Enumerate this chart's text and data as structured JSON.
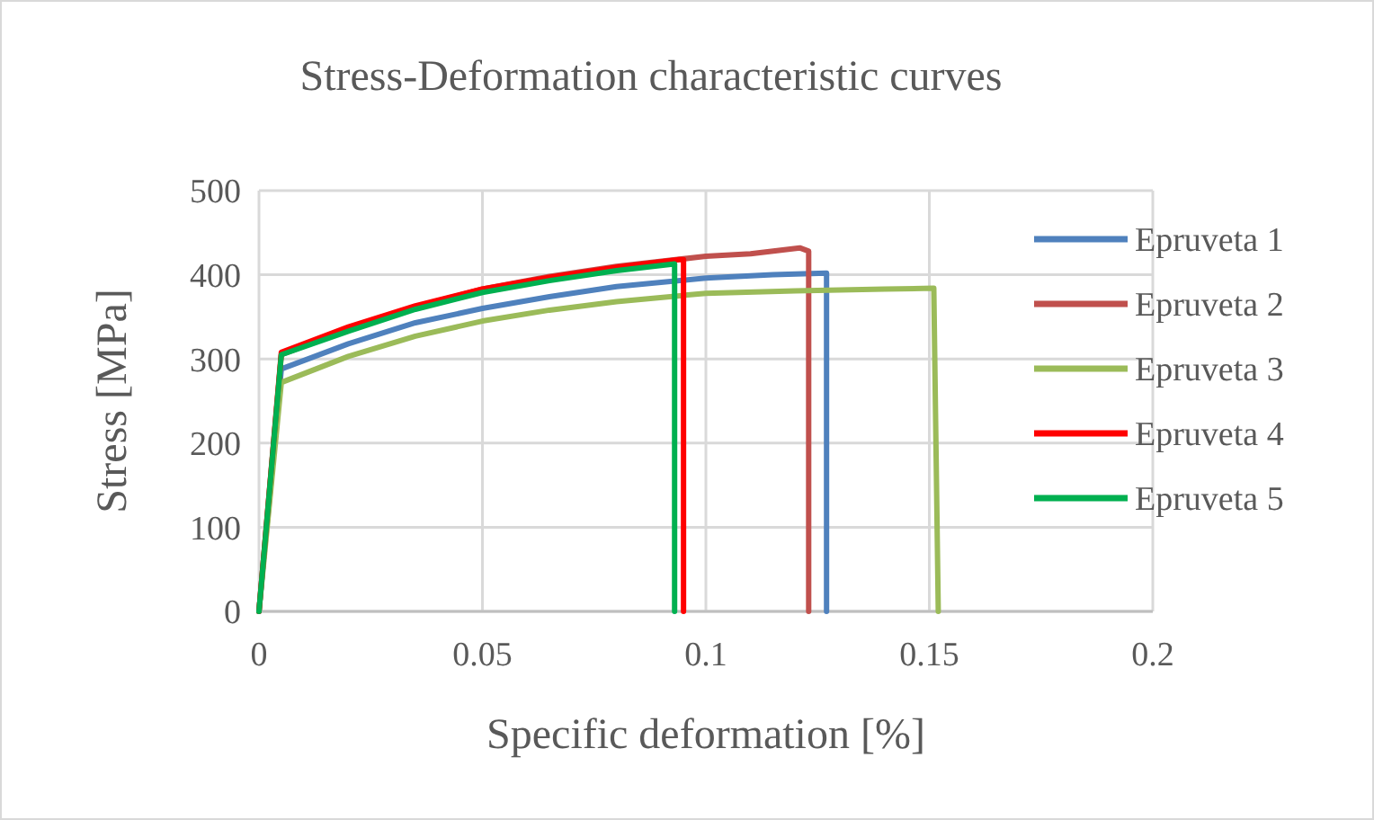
{
  "chart_data": {
    "type": "line",
    "title": "Stress-Deformation characteristic curves",
    "xlabel": "Specific deformation [%]",
    "ylabel": "Stress [MPa]",
    "xlim": [
      0,
      0.2
    ],
    "xticks": [
      0,
      0.05,
      0.1,
      0.15,
      0.2
    ],
    "ylim": [
      0,
      500
    ],
    "yticks": [
      0,
      100,
      200,
      300,
      400,
      500
    ],
    "grid": true,
    "legend": "right",
    "marker": "none",
    "line_style": "solid",
    "series": [
      {
        "name": "Epruveta 1",
        "color": "#4f81bd",
        "x": [
          0,
          0.005,
          0.02,
          0.035,
          0.05,
          0.065,
          0.08,
          0.1,
          0.115,
          0.127,
          0.127
        ],
        "values": [
          0,
          288,
          318,
          343,
          360,
          374,
          386,
          396,
          400,
          402,
          0
        ]
      },
      {
        "name": "Epruveta 2",
        "color": "#c0504d",
        "x": [
          0,
          0.005,
          0.02,
          0.035,
          0.05,
          0.065,
          0.08,
          0.1,
          0.11,
          0.121,
          0.123,
          0.123
        ],
        "values": [
          0,
          305,
          335,
          362,
          383,
          398,
          410,
          422,
          425,
          432,
          428,
          0
        ]
      },
      {
        "name": "Epruveta 3",
        "color": "#9bbb59",
        "x": [
          0,
          0.005,
          0.02,
          0.035,
          0.05,
          0.065,
          0.08,
          0.1,
          0.12,
          0.14,
          0.151,
          0.152
        ],
        "values": [
          0,
          272,
          303,
          327,
          345,
          358,
          368,
          378,
          381,
          383,
          384,
          0
        ]
      },
      {
        "name": "Epruveta 4",
        "color": "#ff0000",
        "x": [
          0,
          0.005,
          0.02,
          0.035,
          0.05,
          0.065,
          0.08,
          0.094,
          0.095,
          0.095
        ],
        "values": [
          0,
          308,
          338,
          363,
          383,
          397,
          409,
          418,
          418,
          0
        ]
      },
      {
        "name": "Epruveta 5",
        "color": "#00b050",
        "x": [
          0,
          0.005,
          0.02,
          0.035,
          0.05,
          0.065,
          0.08,
          0.093,
          0.093
        ],
        "values": [
          0,
          305,
          333,
          359,
          379,
          393,
          405,
          413,
          0
        ]
      }
    ]
  }
}
